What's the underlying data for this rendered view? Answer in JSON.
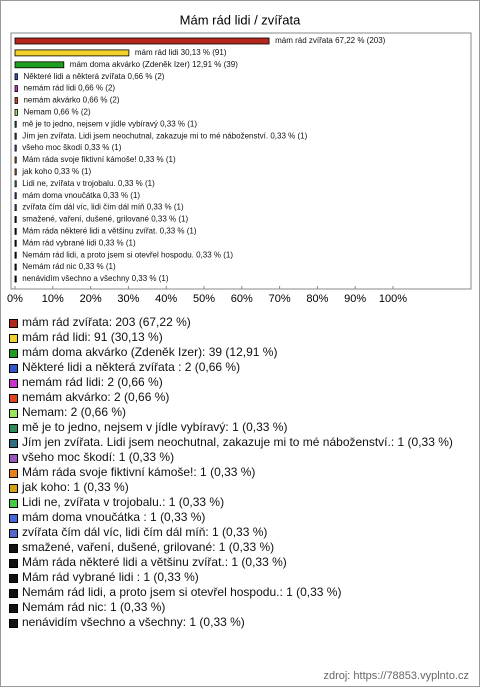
{
  "chart_data": {
    "type": "bar",
    "orientation": "horizontal",
    "title": "Mám rád lidi / zvířata",
    "values": [
      67.22,
      30.13,
      12.91,
      0.66,
      0.66,
      0.66,
      0.66,
      0.33,
      0.33,
      0.33,
      0.33,
      0.33,
      0.33,
      0.33,
      0.33,
      0.33,
      0.33,
      0.33,
      0.33,
      0.33,
      0.33
    ],
    "value_labels": [
      "mám rád zvířata 67,22 % (203)",
      "mám rád lidi 30,13 % (91)",
      "mám doma akvárko (Zdeněk Izer) 12,91 % (39)",
      "Některé lidi a některá zvířata  0,66 % (2)",
      "nemám rád lidi 0,66 % (2)",
      "nemám akvárko 0,66 % (2)",
      "Nemam 0,66 % (2)",
      "mě je to jedno, nejsem v jídle vybíravý 0,33 % (1)",
      "Jím jen zvířata. Lidi jsem neochutnal, zakazuje mi to mé náboženství. 0,33 % (1)",
      "všeho moc škodí 0,33 % (1)",
      "Mám ráda svoje fiktivní kámoše! 0,33 % (1)",
      "jak koho 0,33 % (1)",
      "Lidi ne, zvířata v trojobalu. 0,33 % (1)",
      "mám doma vnoučátka  0,33 % (1)",
      "zvířata čím dál víc, lidi čím dál míň 0,33 % (1)",
      "smažené, vaření, dušené, grilované 0,33 % (1)",
      "Mám ráda některé lidi a většinu zvířat. 0,33 % (1)",
      "Mám rád vybrané lidi  0,33 % (1)",
      "Nemám rád lidi, a proto jsem si otevřel hospodu. 0,33 % (1)",
      "Nemám rád nic 0,33 % (1)",
      "nenávidím všechno a všechny 0,33 % (1)"
    ],
    "legend_labels": [
      "mám rád zvířata: 203 (67,22 %)",
      "mám rád lidi: 91 (30,13 %)",
      "mám doma akvárko (Zdeněk Izer): 39 (12,91 %)",
      "Některé lidi a některá zvířata : 2 (0,66 %)",
      "nemám rád lidi: 2 (0,66 %)",
      "nemám akvárko: 2 (0,66 %)",
      "Nemam: 2 (0,66 %)",
      "mě je to jedno, nejsem v jídle vybíravý: 1 (0,33 %)",
      "Jím jen zvířata. Lidi jsem neochutnal, zakazuje mi to mé náboženství.: 1 (0,33 %)",
      "všeho moc škodí: 1 (0,33 %)",
      "Mám ráda svoje fiktivní kámoše!: 1 (0,33 %)",
      "jak koho: 1 (0,33 %)",
      "Lidi ne, zvířata v trojobalu.: 1 (0,33 %)",
      "mám doma vnoučátka : 1 (0,33 %)",
      "zvířata čím dál víc, lidi čím dál míň: 1 (0,33 %)",
      "smažené, vaření, dušené, grilované: 1 (0,33 %)",
      "Mám ráda některé lidi a většinu zvířat.: 1 (0,33 %)",
      "Mám rád vybrané lidi : 1 (0,33 %)",
      "Nemám rád lidi, a proto jsem si otevřel hospodu.: 1 (0,33 %)",
      "Nemám rád nic: 1 (0,33 %)",
      "nenávidím všechno a všechny: 1 (0,33 %)"
    ],
    "colors": [
      "#b5271c",
      "#f2d02a",
      "#1e9e1e",
      "#3355cc",
      "#cc33cc",
      "#e0461c",
      "#99e65c",
      "#2e8b57",
      "#2f6f7f",
      "#9955bb",
      "#e8801c",
      "#d4a017",
      "#44cc44",
      "#4466dd",
      "#5566cc",
      "#111111",
      "#111111",
      "#111111",
      "#111111",
      "#111111",
      "#111111"
    ],
    "xlim": [
      0,
      100
    ],
    "xticks": [
      {
        "value": 0,
        "label": "0%"
      },
      {
        "value": 10,
        "label": "10%"
      },
      {
        "value": 20,
        "label": "20%"
      },
      {
        "value": 30,
        "label": "30%"
      },
      {
        "value": 40,
        "label": "40%"
      },
      {
        "value": 50,
        "label": "50%"
      },
      {
        "value": 60,
        "label": "60%"
      },
      {
        "value": 70,
        "label": "70%"
      },
      {
        "value": 80,
        "label": "80%"
      },
      {
        "value": 90,
        "label": "90%"
      },
      {
        "value": 100,
        "label": "100%"
      }
    ],
    "grid": false,
    "source": "zdroj: https://78853.vyplnto.cz"
  }
}
